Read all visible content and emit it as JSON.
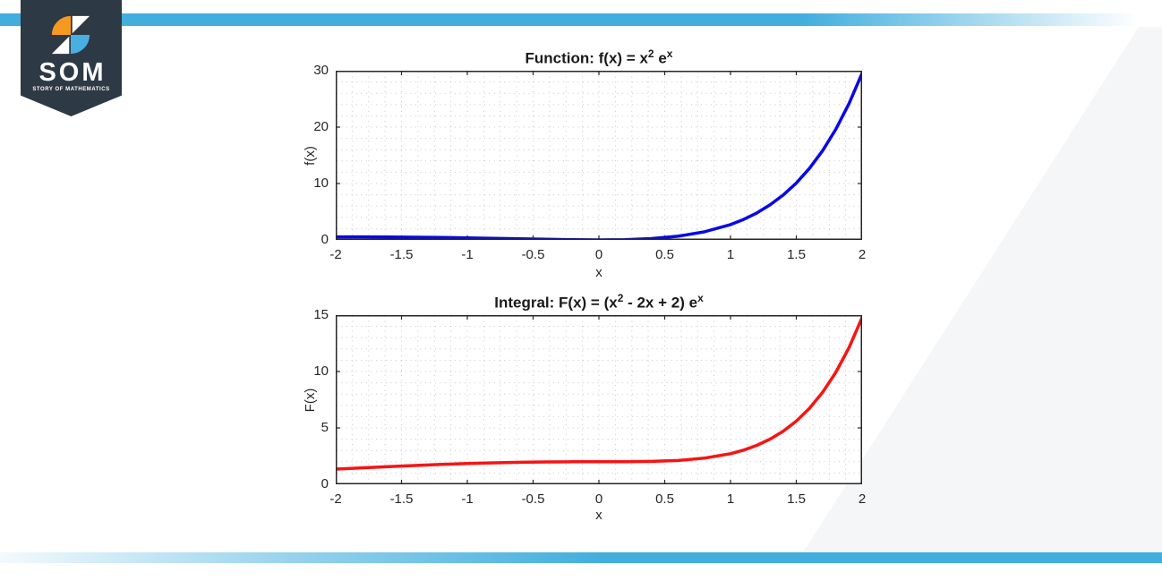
{
  "page": {
    "background": "#ffffff"
  },
  "branding": {
    "acronym": "SOM",
    "tagline": "STORY OF MATHEMATICS",
    "pennant_color": "#2d3945",
    "icon_orange": "#f69920",
    "icon_blue": "#48afe0",
    "icon_white": "#ffffff"
  },
  "decor": {
    "accent_bar_color": "#41aede",
    "watermark_color": "#f5f6f8"
  },
  "chart_data": [
    {
      "type": "line",
      "title": "Function: f(x) = x^2 e^x",
      "title_segments": [
        {
          "text": "Function: f(x) = x",
          "sup": false
        },
        {
          "text": "2",
          "sup": true
        },
        {
          "text": " e",
          "sup": false
        },
        {
          "text": "x",
          "sup": true
        }
      ],
      "xlabel": "x",
      "ylabel": "f(x)",
      "xlim": [
        -2,
        2
      ],
      "ylim": [
        0,
        30
      ],
      "xticks": [
        -2,
        -1.5,
        -1,
        -0.5,
        0,
        0.5,
        1,
        1.5,
        2
      ],
      "xtick_labels": [
        "-2",
        "-1.5",
        "-1",
        "-0.5",
        "0",
        "0.5",
        "1",
        "1.5",
        "2"
      ],
      "yticks": [
        0,
        10,
        20,
        30
      ],
      "ytick_labels": [
        "0",
        "10",
        "20",
        "30"
      ],
      "x_minor_step": 0.125,
      "y_minor_step": 2,
      "grid": "dotted-minor",
      "legend": "none",
      "line_color": "#0808e8",
      "line_width": 3.5,
      "x": [
        -2,
        -1.8,
        -1.6,
        -1.4,
        -1.2,
        -1,
        -0.8,
        -0.6,
        -0.4,
        -0.2,
        0,
        0.2,
        0.4,
        0.6,
        0.8,
        1,
        1.1,
        1.2,
        1.3,
        1.4,
        1.5,
        1.6,
        1.7,
        1.8,
        1.9,
        2
      ],
      "y": [
        0.541,
        0.536,
        0.517,
        0.483,
        0.434,
        0.368,
        0.288,
        0.198,
        0.107,
        0.033,
        0,
        0.049,
        0.239,
        0.656,
        1.424,
        2.718,
        3.635,
        4.781,
        6.201,
        7.948,
        10.084,
        12.68,
        15.82,
        19.601,
        24.136,
        29.556
      ]
    },
    {
      "type": "line",
      "title": "Integral: F(x) = (x^2 - 2x + 2) e^x",
      "title_segments": [
        {
          "text": "Integral: F(x) = (x",
          "sup": false
        },
        {
          "text": "2",
          "sup": true
        },
        {
          "text": " - 2x + 2) e",
          "sup": false
        },
        {
          "text": "x",
          "sup": true
        }
      ],
      "xlabel": "x",
      "ylabel": "F(x)",
      "xlim": [
        -2,
        2
      ],
      "ylim": [
        0,
        15
      ],
      "xticks": [
        -2,
        -1.5,
        -1,
        -0.5,
        0,
        0.5,
        1,
        1.5,
        2
      ],
      "xtick_labels": [
        "-2",
        "-1.5",
        "-1",
        "-0.5",
        "0",
        "0.5",
        "1",
        "1.5",
        "2"
      ],
      "yticks": [
        0,
        5,
        10,
        15
      ],
      "ytick_labels": [
        "0",
        "5",
        "10",
        "15"
      ],
      "x_minor_step": 0.125,
      "y_minor_step": 1,
      "grid": "dotted-minor",
      "legend": "none",
      "line_color": "#f71414",
      "line_width": 3.5,
      "x": [
        -2,
        -1.8,
        -1.6,
        -1.4,
        -1.2,
        -1,
        -0.8,
        -0.6,
        -0.4,
        -0.2,
        0,
        0.2,
        0.4,
        0.6,
        0.8,
        1,
        1.1,
        1.2,
        1.3,
        1.4,
        1.5,
        1.6,
        1.7,
        1.8,
        1.9,
        2
      ],
      "y": [
        1.353,
        1.461,
        1.567,
        1.667,
        1.759,
        1.839,
        1.905,
        1.954,
        1.984,
        1.998,
        2.0,
        2.003,
        2.029,
        2.114,
        2.315,
        2.718,
        3.034,
        3.453,
        4.0,
        4.704,
        5.602,
        6.736,
        8.156,
        9.921,
        12.101,
        14.778
      ]
    }
  ]
}
